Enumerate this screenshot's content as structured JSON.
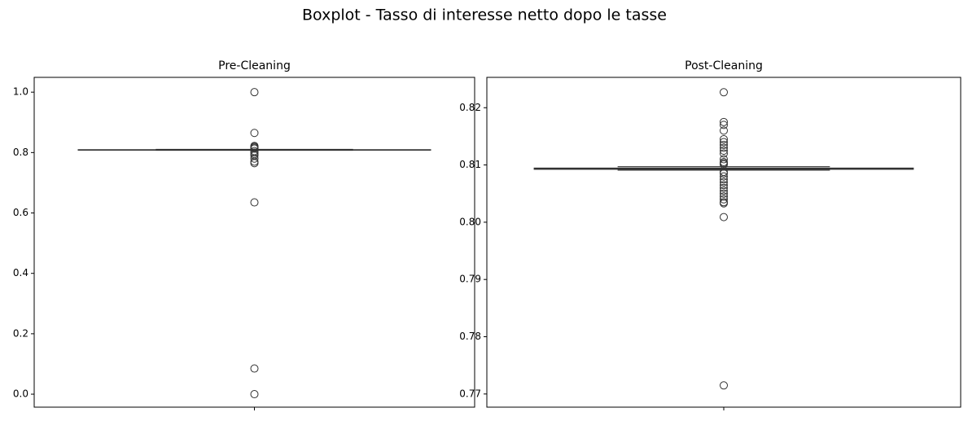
{
  "title": "Boxplot - Tasso di interesse netto dopo le tasse",
  "chart_data": [
    {
      "type": "box",
      "title": "Pre-Cleaning",
      "color": "#333333",
      "whisker_low": 0.8075,
      "q1": 0.8084,
      "median": 0.8088,
      "q3": 0.8094,
      "whisker_high": 0.8105,
      "outliers": [
        1.0,
        0.865,
        0.822,
        0.819,
        0.816,
        0.813,
        0.805,
        0.8,
        0.795,
        0.79,
        0.78,
        0.77,
        0.765,
        0.635,
        0.085,
        0.0
      ],
      "ylim": [
        -0.043,
        1.049
      ],
      "yticks": [
        {
          "value": 0,
          "label": "0.0"
        },
        0.2,
        0.4,
        0.6,
        0.8,
        {
          "value": 1,
          "label": "1.0"
        }
      ]
    },
    {
      "type": "box",
      "title": "Post-Cleaning",
      "color": "#333333",
      "whisker_low": 0.8091,
      "q1": 0.80925,
      "median": 0.8094,
      "q3": 0.80945,
      "whisker_high": 0.8097,
      "outliers": [
        0.8227,
        0.8175,
        0.817,
        0.816,
        0.8145,
        0.814,
        0.8135,
        0.813,
        0.8125,
        0.812,
        0.811,
        0.8105,
        0.8103,
        0.8101,
        0.8088,
        0.8085,
        0.808,
        0.8075,
        0.807,
        0.8065,
        0.806,
        0.8055,
        0.805,
        0.8045,
        0.804,
        0.8035,
        0.8033,
        0.8009,
        0.7715
      ],
      "ylim": [
        0.7677,
        0.8253
      ],
      "yticks": [
        0.77,
        0.78,
        0.79,
        {
          "value": 0.8,
          "label": "0.80"
        },
        0.81,
        0.82
      ]
    }
  ]
}
